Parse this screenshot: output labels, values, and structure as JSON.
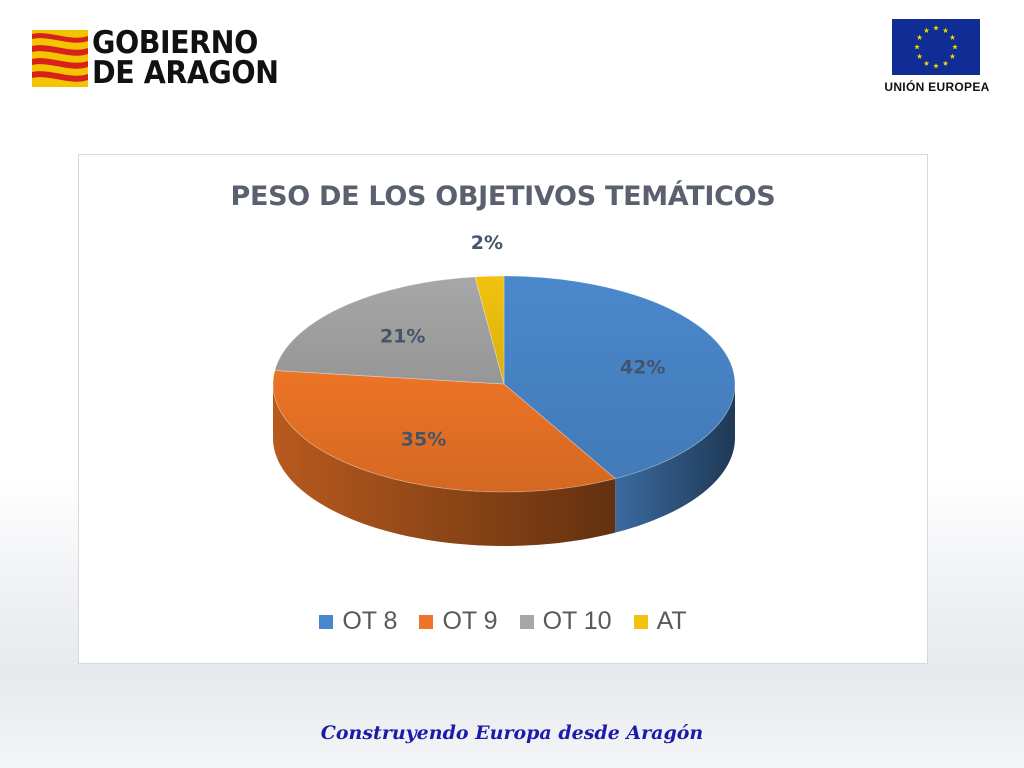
{
  "header": {
    "org_line1": "GOBIERNO",
    "org_line2": "DE ARAGON",
    "eu_label": "UNIÓN EUROPEA"
  },
  "chart_data": {
    "type": "pie",
    "title": "PESO DE LOS OBJETIVOS TEMÁTICOS",
    "categories": [
      "OT 8",
      "OT 9",
      "OT 10",
      "AT"
    ],
    "values": [
      42,
      35,
      21,
      2
    ],
    "labels": [
      "42%",
      "35%",
      "21%",
      "2%"
    ],
    "colors": [
      "#4a88cc",
      "#ec7426",
      "#a7a7a7",
      "#f2c20f"
    ],
    "legend_position": "bottom",
    "style": "3d"
  },
  "footer": {
    "motto": "Construyendo Europa desde Aragón"
  }
}
